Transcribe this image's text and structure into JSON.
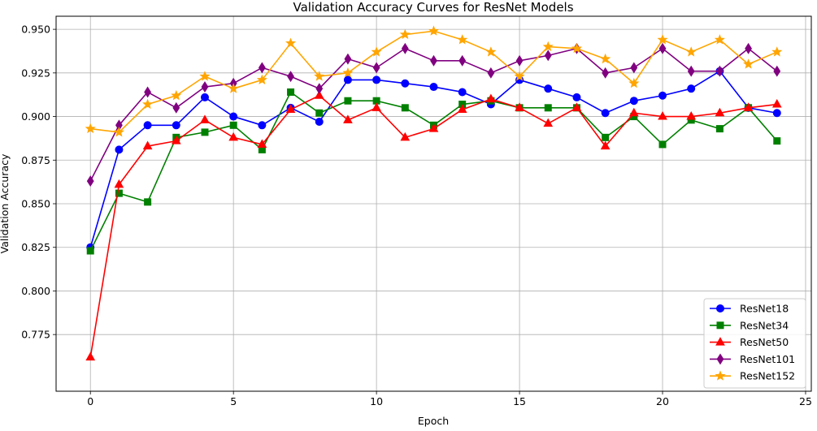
{
  "chart_data": {
    "type": "line",
    "title": "Validation Accuracy Curves for ResNet Models",
    "xlabel": "Epoch",
    "ylabel": "Validation Accuracy",
    "xlim": [
      -1.2,
      25.2
    ],
    "ylim": [
      0.7425,
      0.9575
    ],
    "xticks": [
      0,
      5,
      10,
      15,
      20,
      25
    ],
    "yticks": [
      0.775,
      0.8,
      0.825,
      0.85,
      0.875,
      0.9,
      0.925,
      0.95
    ],
    "xtick_labels": [
      "0",
      "5",
      "10",
      "15",
      "20",
      "25"
    ],
    "ytick_labels": [
      "0.775",
      "0.800",
      "0.825",
      "0.850",
      "0.875",
      "0.900",
      "0.925",
      "0.950"
    ],
    "grid": true,
    "legend_position": "lower-right",
    "x": [
      0,
      1,
      2,
      3,
      4,
      5,
      6,
      7,
      8,
      9,
      10,
      11,
      12,
      13,
      14,
      15,
      16,
      17,
      18,
      19,
      20,
      21,
      22,
      23,
      24
    ],
    "series": [
      {
        "name": "ResNet18",
        "color": "#0000ff",
        "marker": "circle",
        "values": [
          0.825,
          0.881,
          0.895,
          0.895,
          0.911,
          0.9,
          0.895,
          0.905,
          0.897,
          0.921,
          0.921,
          0.919,
          0.917,
          0.914,
          0.907,
          0.921,
          0.916,
          0.911,
          0.902,
          0.909,
          0.912,
          0.916,
          0.926,
          0.905,
          0.902
        ]
      },
      {
        "name": "ResNet34",
        "color": "#008000",
        "marker": "square",
        "values": [
          0.823,
          0.856,
          0.851,
          0.888,
          0.891,
          0.895,
          0.881,
          0.914,
          0.902,
          0.909,
          0.909,
          0.905,
          0.895,
          0.907,
          0.909,
          0.905,
          0.905,
          0.905,
          0.888,
          0.9,
          0.884,
          0.898,
          0.893,
          0.905,
          0.886
        ]
      },
      {
        "name": "ResNet50",
        "color": "#ff0000",
        "marker": "triangle",
        "values": [
          0.762,
          0.861,
          0.883,
          0.886,
          0.898,
          0.888,
          0.884,
          0.904,
          0.912,
          0.898,
          0.905,
          0.888,
          0.893,
          0.904,
          0.91,
          0.905,
          0.896,
          0.905,
          0.883,
          0.902,
          0.9,
          0.9,
          0.902,
          0.905,
          0.907
        ]
      },
      {
        "name": "ResNet101",
        "color": "#800080",
        "marker": "diamond",
        "values": [
          0.863,
          0.895,
          0.914,
          0.905,
          0.917,
          0.919,
          0.928,
          0.923,
          0.916,
          0.933,
          0.928,
          0.939,
          0.932,
          0.932,
          0.925,
          0.932,
          0.935,
          0.939,
          0.925,
          0.928,
          0.939,
          0.926,
          0.926,
          0.939,
          0.926
        ]
      },
      {
        "name": "ResNet152",
        "color": "#ffa500",
        "marker": "star",
        "values": [
          0.893,
          0.891,
          0.907,
          0.912,
          0.923,
          0.916,
          0.921,
          0.942,
          0.923,
          0.925,
          0.937,
          0.947,
          0.949,
          0.944,
          0.937,
          0.923,
          0.94,
          0.939,
          0.933,
          0.919,
          0.944,
          0.937,
          0.944,
          0.93,
          0.937
        ]
      }
    ]
  }
}
